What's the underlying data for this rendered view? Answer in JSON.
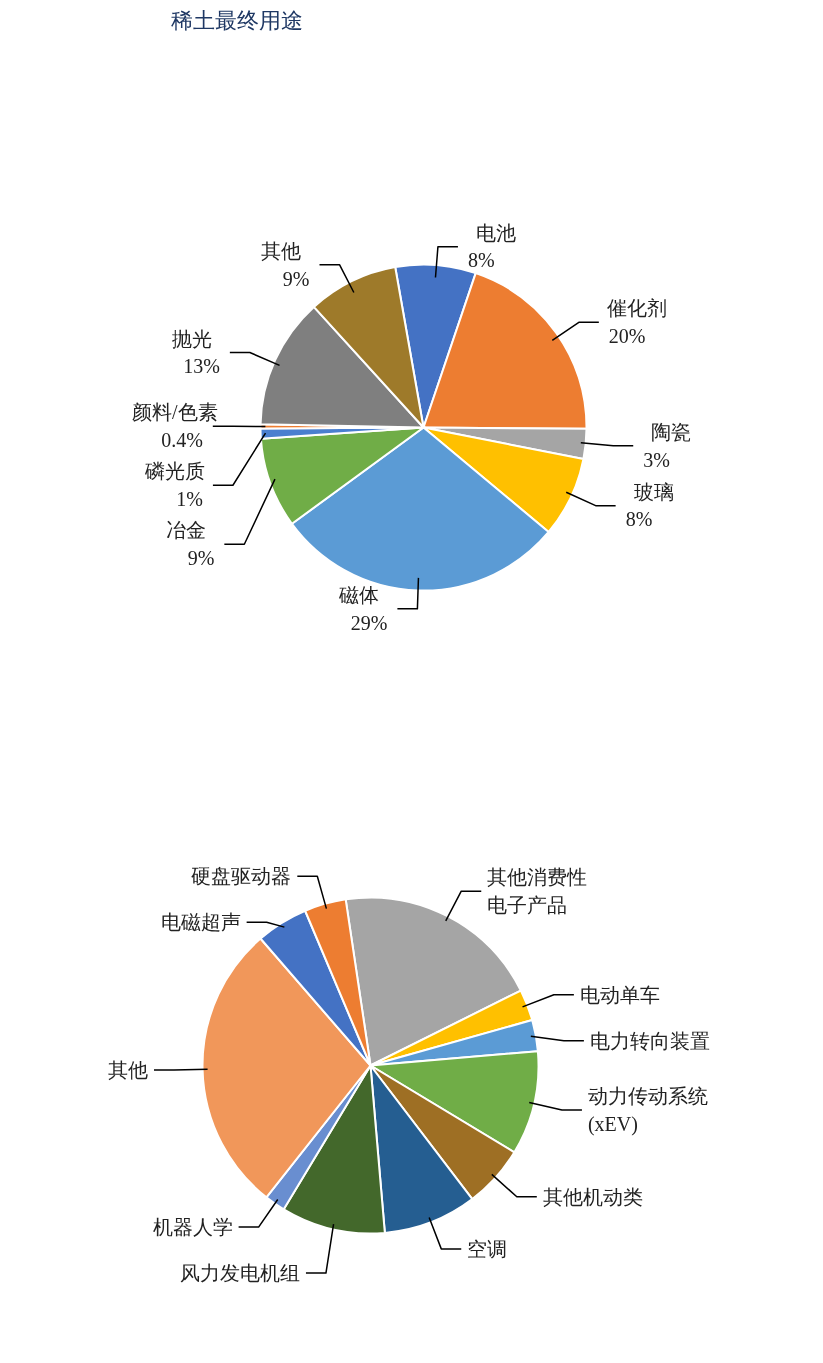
{
  "chart_data": [
    {
      "type": "pie",
      "title": "稀土最终用途",
      "categories": [
        "电池",
        "催化剂",
        "陶瓷",
        "玻璃",
        "磁体",
        "冶金",
        "磷光质",
        "颜料/色素",
        "抛光",
        "其他"
      ],
      "values": [
        8,
        20,
        3,
        8,
        29,
        9,
        1,
        0.4,
        13,
        9
      ],
      "colors": [
        "#4472c4",
        "#ed7d31",
        "#a5a5a5",
        "#ffc000",
        "#5b9bd5",
        "#70ad47",
        "#4a7fcf",
        "#ed7d31",
        "#7f7f7f",
        "#9e7a2a"
      ],
      "value_labels": [
        "8%",
        "20%",
        "3%",
        "8%",
        "29%",
        "9%",
        "1%",
        "0.4%",
        "13%",
        "9%"
      ]
    },
    {
      "type": "pie",
      "categories": [
        "其他消费性电子产品",
        "电动单车",
        "电力转向装置",
        "动力传动系统 (xEV)",
        "其他机动类",
        "空调",
        "风力发电机组",
        "机器人学",
        "其他",
        "电磁超声",
        "硬盘驱动器"
      ],
      "values": [
        20,
        3,
        3,
        10,
        6,
        9,
        10,
        2,
        28,
        5,
        4
      ],
      "colors": [
        "#a5a5a5",
        "#ffc000",
        "#5b9bd5",
        "#70ad47",
        "#9e6f24",
        "#255e91",
        "#43682b",
        "#698ed0",
        "#f1975a",
        "#4472c4",
        "#ed7d31"
      ]
    }
  ]
}
